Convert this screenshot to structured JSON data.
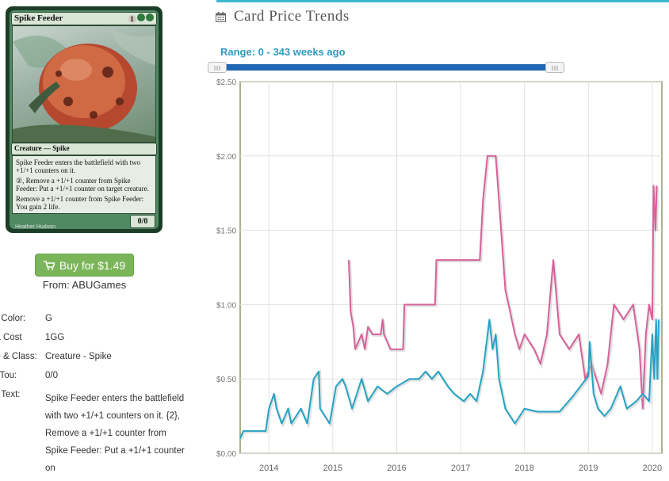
{
  "card": {
    "name": "Spike Feeder",
    "cost_generic": "1",
    "type_line": "Creature — Spike",
    "rules_1": "Spike Feeder enters the battlefield with two +1/+1 counters on it.",
    "rules_2": "②, Remove a +1/+1 counter from Spike Feeder: Put a +1/+1 counter on target creature.",
    "rules_3": "Remove a +1/+1 counter from Spike Feeder: You gain 2 life.",
    "pt": "0/0",
    "artist": "Heather Hudson"
  },
  "buy": {
    "label": "Buy for $1.49",
    "from": "From: ABUGames",
    "color": "#7bb55a"
  },
  "details": {
    "color_label": "rd Color:",
    "color_value": "G",
    "mana_label": "na Cost",
    "mana_value": "1GG",
    "type_label": "pe & Class:",
    "type_value": "Creature - Spike",
    "pt_label": "w/Tou:",
    "pt_value": "0/0",
    "text_label": "rd Text:",
    "text_value": "Spike Feeder enters the battlefield with two +1/+1 counters on it. {2}, Remove a +1/+1 counter from Spike Feeder: Put a +1/+1 counter on"
  },
  "section": {
    "title": "Card Price Trends",
    "range_label": "Range: 0 - 343 weeks ago",
    "accent": "#3cb7d0",
    "slider_color": "#2168b5"
  },
  "chart_data": {
    "type": "line",
    "ylim": [
      0,
      2.5
    ],
    "ytick_labels": [
      "$0.00",
      "$0.50",
      "$1.00",
      "$1.50",
      "$2.00",
      "$2.50"
    ],
    "yticks": [
      0,
      0.5,
      1.0,
      1.5,
      2.0,
      2.5
    ],
    "xlim": [
      2013.55,
      2020.15
    ],
    "xtick_labels": [
      "2014",
      "2015",
      "2016",
      "2017",
      "2018",
      "2019",
      "2020"
    ],
    "xticks": [
      2014,
      2015,
      2016,
      2017,
      2018,
      2019,
      2020
    ],
    "grid": true,
    "series": [
      {
        "color": "#d6619a",
        "points": [
          [
            2015.25,
            1.3
          ],
          [
            2015.28,
            0.95
          ],
          [
            2015.32,
            0.85
          ],
          [
            2015.35,
            0.7
          ],
          [
            2015.45,
            0.8
          ],
          [
            2015.5,
            0.7
          ],
          [
            2015.55,
            0.85
          ],
          [
            2015.62,
            0.8
          ],
          [
            2015.75,
            0.8
          ],
          [
            2015.78,
            0.9
          ],
          [
            2015.8,
            0.8
          ],
          [
            2015.85,
            0.75
          ],
          [
            2015.9,
            0.7
          ],
          [
            2016.1,
            0.7
          ],
          [
            2016.12,
            1.0
          ],
          [
            2016.6,
            1.0
          ],
          [
            2016.62,
            1.3
          ],
          [
            2017.3,
            1.3
          ],
          [
            2017.35,
            1.7
          ],
          [
            2017.42,
            2.0
          ],
          [
            2017.55,
            2.0
          ],
          [
            2017.6,
            1.7
          ],
          [
            2017.7,
            1.1
          ],
          [
            2017.85,
            0.8
          ],
          [
            2017.92,
            0.7
          ],
          [
            2018.0,
            0.8
          ],
          [
            2018.15,
            0.7
          ],
          [
            2018.25,
            0.6
          ],
          [
            2018.35,
            0.8
          ],
          [
            2018.45,
            1.3
          ],
          [
            2018.55,
            0.8
          ],
          [
            2018.7,
            0.7
          ],
          [
            2018.85,
            0.8
          ],
          [
            2018.95,
            0.5
          ],
          [
            2019.05,
            0.6
          ],
          [
            2019.2,
            0.4
          ],
          [
            2019.3,
            0.6
          ],
          [
            2019.4,
            1.0
          ],
          [
            2019.55,
            0.9
          ],
          [
            2019.7,
            1.0
          ],
          [
            2019.8,
            0.7
          ],
          [
            2019.85,
            0.3
          ],
          [
            2019.9,
            0.8
          ],
          [
            2019.95,
            1.0
          ],
          [
            2020.0,
            0.9
          ],
          [
            2020.02,
            1.8
          ],
          [
            2020.05,
            1.5
          ],
          [
            2020.07,
            1.8
          ]
        ]
      },
      {
        "color": "#25a3c2",
        "points": [
          [
            2013.55,
            0.1
          ],
          [
            2013.6,
            0.15
          ],
          [
            2013.95,
            0.15
          ],
          [
            2014.0,
            0.3
          ],
          [
            2014.08,
            0.4
          ],
          [
            2014.12,
            0.3
          ],
          [
            2014.2,
            0.2
          ],
          [
            2014.3,
            0.3
          ],
          [
            2014.35,
            0.2
          ],
          [
            2014.5,
            0.3
          ],
          [
            2014.6,
            0.2
          ],
          [
            2014.7,
            0.5
          ],
          [
            2014.78,
            0.55
          ],
          [
            2014.8,
            0.3
          ],
          [
            2014.95,
            0.2
          ],
          [
            2015.05,
            0.45
          ],
          [
            2015.15,
            0.5
          ],
          [
            2015.2,
            0.45
          ],
          [
            2015.3,
            0.3
          ],
          [
            2015.45,
            0.5
          ],
          [
            2015.55,
            0.35
          ],
          [
            2015.7,
            0.45
          ],
          [
            2015.85,
            0.4
          ],
          [
            2016.0,
            0.45
          ],
          [
            2016.2,
            0.5
          ],
          [
            2016.35,
            0.5
          ],
          [
            2016.45,
            0.55
          ],
          [
            2016.55,
            0.5
          ],
          [
            2016.65,
            0.55
          ],
          [
            2016.8,
            0.45
          ],
          [
            2016.9,
            0.4
          ],
          [
            2017.05,
            0.35
          ],
          [
            2017.15,
            0.4
          ],
          [
            2017.25,
            0.35
          ],
          [
            2017.35,
            0.55
          ],
          [
            2017.45,
            0.9
          ],
          [
            2017.5,
            0.7
          ],
          [
            2017.55,
            0.8
          ],
          [
            2017.6,
            0.5
          ],
          [
            2017.7,
            0.3
          ],
          [
            2017.85,
            0.2
          ],
          [
            2018.0,
            0.3
          ],
          [
            2018.2,
            0.28
          ],
          [
            2018.4,
            0.28
          ],
          [
            2018.55,
            0.28
          ],
          [
            2018.75,
            0.38
          ],
          [
            2019.0,
            0.52
          ],
          [
            2019.02,
            0.75
          ],
          [
            2019.08,
            0.4
          ],
          [
            2019.15,
            0.3
          ],
          [
            2019.25,
            0.25
          ],
          [
            2019.35,
            0.3
          ],
          [
            2019.5,
            0.45
          ],
          [
            2019.6,
            0.3
          ],
          [
            2019.75,
            0.35
          ],
          [
            2019.85,
            0.4
          ],
          [
            2019.95,
            0.35
          ],
          [
            2020.0,
            0.8
          ],
          [
            2020.03,
            0.5
          ],
          [
            2020.06,
            0.9
          ],
          [
            2020.08,
            0.5
          ],
          [
            2020.1,
            0.9
          ]
        ]
      }
    ]
  }
}
